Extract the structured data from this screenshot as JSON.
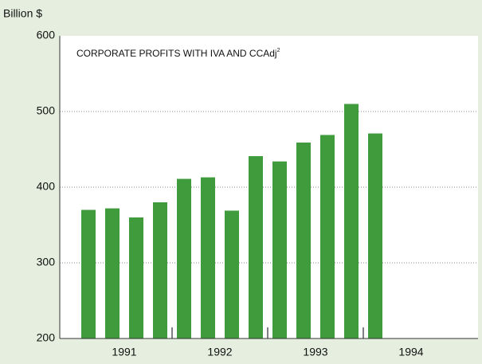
{
  "chart_data": {
    "type": "bar",
    "y_label": "Billion $",
    "title": "CORPORATE PROFITS WITH IVA AND CCAdj",
    "title_note": "2",
    "years": [
      "1991",
      "1992",
      "1993",
      "1994"
    ],
    "values": [
      370,
      372,
      360,
      380,
      411,
      413,
      369,
      441,
      434,
      459,
      469,
      510,
      471
    ],
    "color": "#3f9b3c",
    "ylim": [
      200,
      600
    ],
    "yticks": [
      200,
      300,
      400,
      500,
      600
    ],
    "grid": true
  }
}
